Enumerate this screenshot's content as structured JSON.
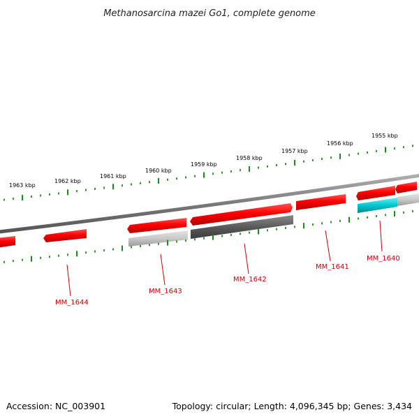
{
  "title": "Methanosarcina mazei Go1, complete genome",
  "footer": {
    "accession": "Accession: NC_003901",
    "summary": "Topology: circular; Length: 4,096,345 bp; Genes: 3,434"
  },
  "kbp_labels": [
    "1963 kbp",
    "1962 kbp",
    "1961 kbp",
    "1960 kbp",
    "1959 kbp",
    "1958 kbp",
    "1957 kbp",
    "1956 kbp",
    "1955 kbp"
  ],
  "genes": [
    {
      "label": "MM_1644"
    },
    {
      "label": "MM_1643"
    },
    {
      "label": "MM_1642"
    },
    {
      "label": "MM_1641"
    },
    {
      "label": "MM_1640"
    }
  ],
  "colors": {
    "forward_gene": "#ff0000",
    "reverse_gene_light": "#c8c8c8",
    "reverse_gene_dark": "#5a5a5a",
    "reverse_gene_cyan": "#00c8d0",
    "backbone": "#808080",
    "ticks": "#1a8a1a",
    "gene_label": "#cc0000"
  }
}
